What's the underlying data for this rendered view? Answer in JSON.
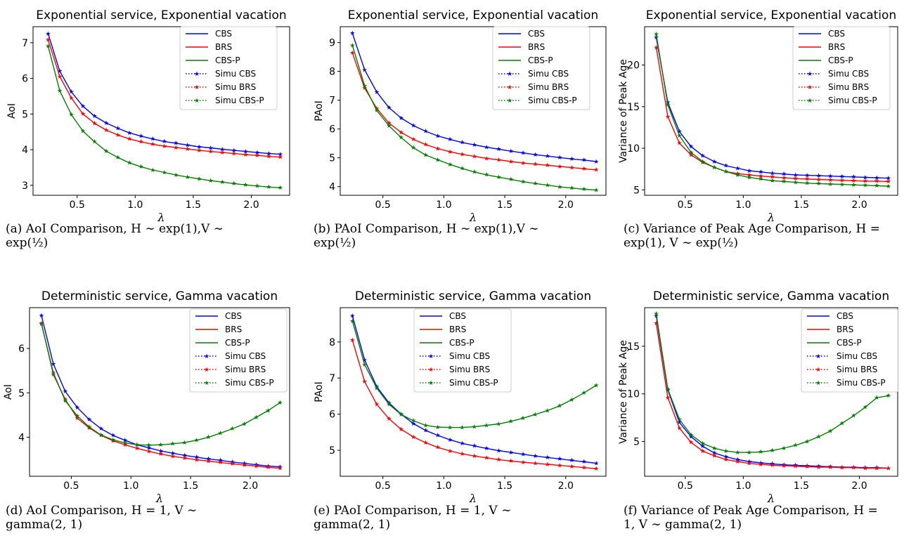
{
  "x_label": "λ",
  "legend_entries": [
    "CBS",
    "BRS",
    "CBS-P",
    "Simu CBS",
    "Simu BRS",
    "Simu CBS-P"
  ],
  "series_colors": {
    "CBS": "#0000ff",
    "BRS": "#ff0000",
    "CBS-P": "#008000"
  },
  "captions": [
    {
      "line1": "(a)  AoI  Comparison,  H  ∼  exp(1),V  ∼",
      "line2": "exp(½)"
    },
    {
      "line1": "(b)  PAoI  Comparison,  H  ∼  exp(1),V  ∼",
      "line2": "exp(½)"
    },
    {
      "line1": "(c) Variance of Peak Age Comparison, H =",
      "line2": "exp(1), V ∼ exp(½)"
    },
    {
      "line1": "(d)  AoI  Comparison,  H  =  1,  V  ∼",
      "line2": "gamma(2, 1)"
    },
    {
      "line1": "(e)  PAoI  Comparison,  H  =  1,  V  ∼",
      "line2": "gamma(2, 1)"
    },
    {
      "line1": "(f) Variance of Peak Age Comparison, H =",
      "line2": "1, V ∼ gamma(2, 1)"
    }
  ],
  "chart_data": [
    {
      "type": "line",
      "title": "Exponential service, Exponential vacation",
      "xlabel": "λ",
      "ylabel": "AoI",
      "xlim": [
        0.12,
        2.33
      ],
      "ylim": [
        2.72,
        7.45
      ],
      "xticks": [
        0.5,
        1.0,
        1.5,
        2.0
      ],
      "xtick_labels": [
        "0.5",
        "1.0",
        "1.5",
        "2.0"
      ],
      "yticks": [
        3,
        4,
        5,
        6,
        7
      ],
      "ytick_labels": [
        "3",
        "4",
        "5",
        "6",
        "7"
      ],
      "legend_position": "top-right",
      "x": [
        0.25,
        0.35,
        0.45,
        0.55,
        0.65,
        0.75,
        0.85,
        0.95,
        1.05,
        1.15,
        1.25,
        1.35,
        1.45,
        1.55,
        1.65,
        1.75,
        1.85,
        1.95,
        2.05,
        2.15,
        2.25
      ],
      "series": [
        {
          "name": "CBS",
          "values": [
            7.25,
            6.2,
            5.62,
            5.22,
            4.94,
            4.75,
            4.6,
            4.47,
            4.38,
            4.3,
            4.23,
            4.18,
            4.13,
            4.08,
            4.05,
            4.01,
            3.98,
            3.95,
            3.92,
            3.89,
            3.87
          ]
        },
        {
          "name": "BRS",
          "values": [
            7.08,
            6.05,
            5.45,
            5.0,
            4.74,
            4.55,
            4.41,
            4.3,
            4.22,
            4.15,
            4.1,
            4.06,
            4.02,
            3.98,
            3.95,
            3.92,
            3.89,
            3.86,
            3.84,
            3.81,
            3.79
          ]
        },
        {
          "name": "CBS-P",
          "values": [
            6.9,
            5.65,
            4.98,
            4.52,
            4.22,
            3.96,
            3.78,
            3.63,
            3.52,
            3.43,
            3.36,
            3.29,
            3.23,
            3.18,
            3.13,
            3.09,
            3.05,
            3.01,
            2.98,
            2.95,
            2.93
          ]
        }
      ]
    },
    {
      "type": "line",
      "title": "Exponential service, Exponential vacation",
      "xlabel": "λ",
      "ylabel": "PAoI",
      "xlim": [
        0.15,
        2.33
      ],
      "ylim": [
        3.7,
        9.55
      ],
      "xticks": [
        0.5,
        1.0,
        1.5,
        2.0
      ],
      "xtick_labels": [
        "0.5",
        "1.0",
        "1.5",
        "2.0"
      ],
      "yticks": [
        4,
        5,
        6,
        7,
        8,
        9
      ],
      "ytick_labels": [
        "4",
        "5",
        "6",
        "7",
        "8",
        "9"
      ],
      "legend_position": "top-right",
      "x": [
        0.25,
        0.35,
        0.45,
        0.55,
        0.65,
        0.75,
        0.85,
        0.95,
        1.05,
        1.15,
        1.25,
        1.35,
        1.45,
        1.55,
        1.65,
        1.75,
        1.85,
        1.95,
        2.05,
        2.15,
        2.25
      ],
      "series": [
        {
          "name": "CBS",
          "values": [
            9.32,
            8.05,
            7.28,
            6.74,
            6.38,
            6.12,
            5.92,
            5.76,
            5.64,
            5.53,
            5.45,
            5.37,
            5.3,
            5.23,
            5.17,
            5.11,
            5.06,
            5.01,
            4.96,
            4.92,
            4.87
          ]
        },
        {
          "name": "BRS",
          "values": [
            8.64,
            7.42,
            6.71,
            6.2,
            5.88,
            5.64,
            5.46,
            5.32,
            5.21,
            5.12,
            5.05,
            4.98,
            4.93,
            4.87,
            4.82,
            4.78,
            4.74,
            4.7,
            4.66,
            4.62,
            4.58
          ]
        },
        {
          "name": "CBS-P",
          "values": [
            8.9,
            7.5,
            6.64,
            6.11,
            5.7,
            5.35,
            5.1,
            4.93,
            4.77,
            4.63,
            4.51,
            4.41,
            4.33,
            4.25,
            4.17,
            4.11,
            4.05,
            3.99,
            3.95,
            3.91,
            3.88
          ]
        }
      ]
    },
    {
      "type": "line",
      "title": "Exponential service, Exponential vacation",
      "xlabel": "λ",
      "ylabel": "Variance of Peak Age",
      "xlim": [
        0.15,
        2.33
      ],
      "ylim": [
        4.35,
        24.6
      ],
      "xticks": [
        0.5,
        1.0,
        1.5,
        2.0
      ],
      "xtick_labels": [
        "0.5",
        "1.0",
        "1.5",
        "2.0"
      ],
      "yticks": [
        5,
        10,
        15,
        20
      ],
      "ytick_labels": [
        "5",
        "10",
        "15",
        "20"
      ],
      "legend_position": "top-right",
      "x": [
        0.25,
        0.35,
        0.45,
        0.55,
        0.65,
        0.75,
        0.85,
        0.95,
        1.05,
        1.15,
        1.25,
        1.35,
        1.45,
        1.55,
        1.65,
        1.75,
        1.85,
        1.95,
        2.05,
        2.15,
        2.25
      ],
      "series": [
        {
          "name": "CBS",
          "values": [
            23.3,
            15.5,
            12.0,
            10.2,
            9.1,
            8.4,
            7.9,
            7.6,
            7.3,
            7.15,
            7.0,
            6.9,
            6.8,
            6.75,
            6.7,
            6.65,
            6.6,
            6.55,
            6.5,
            6.45,
            6.4
          ]
        },
        {
          "name": "BRS",
          "values": [
            22.1,
            13.8,
            10.6,
            9.2,
            8.3,
            7.7,
            7.2,
            6.95,
            6.8,
            6.65,
            6.55,
            6.45,
            6.35,
            6.3,
            6.25,
            6.2,
            6.15,
            6.1,
            6.05,
            6.05,
            6.0
          ]
        },
        {
          "name": "CBS-P",
          "values": [
            23.7,
            15.2,
            11.5,
            9.5,
            8.4,
            7.7,
            7.2,
            6.8,
            6.5,
            6.3,
            6.1,
            6.0,
            5.9,
            5.8,
            5.75,
            5.7,
            5.65,
            5.6,
            5.55,
            5.5,
            5.45
          ]
        }
      ]
    },
    {
      "type": "line",
      "title": "Deterministic service, Gamma vacation",
      "xlabel": "λ",
      "ylabel": "AoI",
      "xlim": [
        0.15,
        2.33
      ],
      "ylim": [
        3.12,
        6.92
      ],
      "xticks": [
        0.5,
        1.0,
        1.5,
        2.0
      ],
      "xtick_labels": [
        "0.5",
        "1.0",
        "1.5",
        "2.0"
      ],
      "yticks": [
        4,
        5,
        6
      ],
      "ytick_labels": [
        "4",
        "5",
        "6"
      ],
      "legend_position": "top-right",
      "x": [
        0.25,
        0.35,
        0.45,
        0.55,
        0.65,
        0.75,
        0.85,
        0.95,
        1.05,
        1.15,
        1.25,
        1.35,
        1.45,
        1.55,
        1.65,
        1.75,
        1.85,
        1.95,
        2.05,
        2.15,
        2.25
      ],
      "series": [
        {
          "name": "CBS",
          "values": [
            6.74,
            5.65,
            5.03,
            4.67,
            4.4,
            4.19,
            4.04,
            3.93,
            3.83,
            3.76,
            3.69,
            3.64,
            3.59,
            3.55,
            3.51,
            3.48,
            3.44,
            3.41,
            3.38,
            3.35,
            3.33
          ]
        },
        {
          "name": "BRS",
          "values": [
            6.57,
            5.41,
            4.85,
            4.43,
            4.21,
            4.04,
            3.92,
            3.83,
            3.75,
            3.68,
            3.62,
            3.57,
            3.53,
            3.49,
            3.46,
            3.43,
            3.4,
            3.37,
            3.35,
            3.32,
            3.3
          ]
        },
        {
          "name": "CBS-P",
          "values": [
            6.55,
            5.45,
            4.82,
            4.48,
            4.23,
            4.05,
            3.94,
            3.87,
            3.83,
            3.82,
            3.83,
            3.85,
            3.88,
            3.93,
            4.0,
            4.09,
            4.19,
            4.3,
            4.45,
            4.6,
            4.78
          ]
        }
      ]
    },
    {
      "type": "line",
      "title": "Deterministic service, Gamma vacation",
      "xlabel": "λ",
      "ylabel": "PAoI",
      "xlim": [
        0.15,
        2.33
      ],
      "ylim": [
        4.28,
        8.95
      ],
      "xticks": [
        0.5,
        1.0,
        1.5,
        2.0
      ],
      "xtick_labels": [
        "0.5",
        "1.0",
        "1.5",
        "2.0"
      ],
      "yticks": [
        5,
        6,
        7,
        8
      ],
      "ytick_labels": [
        "5",
        "6",
        "7",
        "8"
      ],
      "legend_position": "top-center",
      "x": [
        0.25,
        0.35,
        0.45,
        0.55,
        0.65,
        0.75,
        0.85,
        0.95,
        1.05,
        1.15,
        1.25,
        1.35,
        1.45,
        1.55,
        1.65,
        1.75,
        1.85,
        1.95,
        2.05,
        2.15,
        2.25
      ],
      "series": [
        {
          "name": "CBS",
          "values": [
            8.72,
            7.5,
            6.76,
            6.31,
            6.0,
            5.74,
            5.55,
            5.41,
            5.29,
            5.19,
            5.12,
            5.05,
            4.99,
            4.94,
            4.89,
            4.84,
            4.8,
            4.76,
            4.72,
            4.68,
            4.64
          ]
        },
        {
          "name": "BRS",
          "values": [
            8.05,
            6.9,
            6.27,
            5.87,
            5.58,
            5.37,
            5.21,
            5.08,
            4.98,
            4.9,
            4.84,
            4.79,
            4.74,
            4.7,
            4.67,
            4.64,
            4.61,
            4.58,
            4.55,
            4.52,
            4.49
          ]
        },
        {
          "name": "CBS-P",
          "values": [
            8.58,
            7.37,
            6.72,
            6.27,
            5.99,
            5.82,
            5.69,
            5.64,
            5.63,
            5.63,
            5.65,
            5.69,
            5.73,
            5.8,
            5.89,
            5.99,
            6.1,
            6.23,
            6.4,
            6.59,
            6.8
          ]
        }
      ]
    },
    {
      "type": "line",
      "title": "Deterministic service, Gamma vacation",
      "xlabel": "λ",
      "ylabel": "Variance of Peak Age",
      "xlim": [
        0.15,
        2.33
      ],
      "ylim": [
        1.35,
        19.05
      ],
      "xticks": [
        0.5,
        1.0,
        1.5,
        2.0
      ],
      "xtick_labels": [
        "0.5",
        "1.0",
        "1.5",
        "2.0"
      ],
      "yticks": [
        5,
        10,
        15
      ],
      "ytick_labels": [
        "5",
        "10",
        "15"
      ],
      "legend_position": "top-right",
      "x": [
        0.25,
        0.35,
        0.45,
        0.55,
        0.65,
        0.75,
        0.85,
        0.95,
        1.05,
        1.15,
        1.25,
        1.35,
        1.45,
        1.55,
        1.65,
        1.75,
        1.85,
        1.95,
        2.05,
        2.15,
        2.25
      ],
      "series": [
        {
          "name": "CBS",
          "values": [
            18.2,
            10.4,
            7.0,
            5.5,
            4.5,
            3.8,
            3.4,
            3.1,
            2.9,
            2.75,
            2.65,
            2.55,
            2.5,
            2.45,
            2.4,
            2.35,
            2.3,
            2.3,
            2.25,
            2.25,
            2.2
          ]
        },
        {
          "name": "BRS",
          "values": [
            17.4,
            9.6,
            6.4,
            4.9,
            4.0,
            3.5,
            3.1,
            2.9,
            2.7,
            2.6,
            2.5,
            2.45,
            2.4,
            2.35,
            2.3,
            2.3,
            2.25,
            2.25,
            2.2,
            2.2,
            2.2
          ]
        },
        {
          "name": "CBS-P",
          "values": [
            18.4,
            10.5,
            7.3,
            5.7,
            4.8,
            4.3,
            4.0,
            3.85,
            3.85,
            3.9,
            4.05,
            4.3,
            4.6,
            5.0,
            5.5,
            6.1,
            6.9,
            7.7,
            8.6,
            9.6,
            9.8
          ]
        }
      ]
    }
  ]
}
